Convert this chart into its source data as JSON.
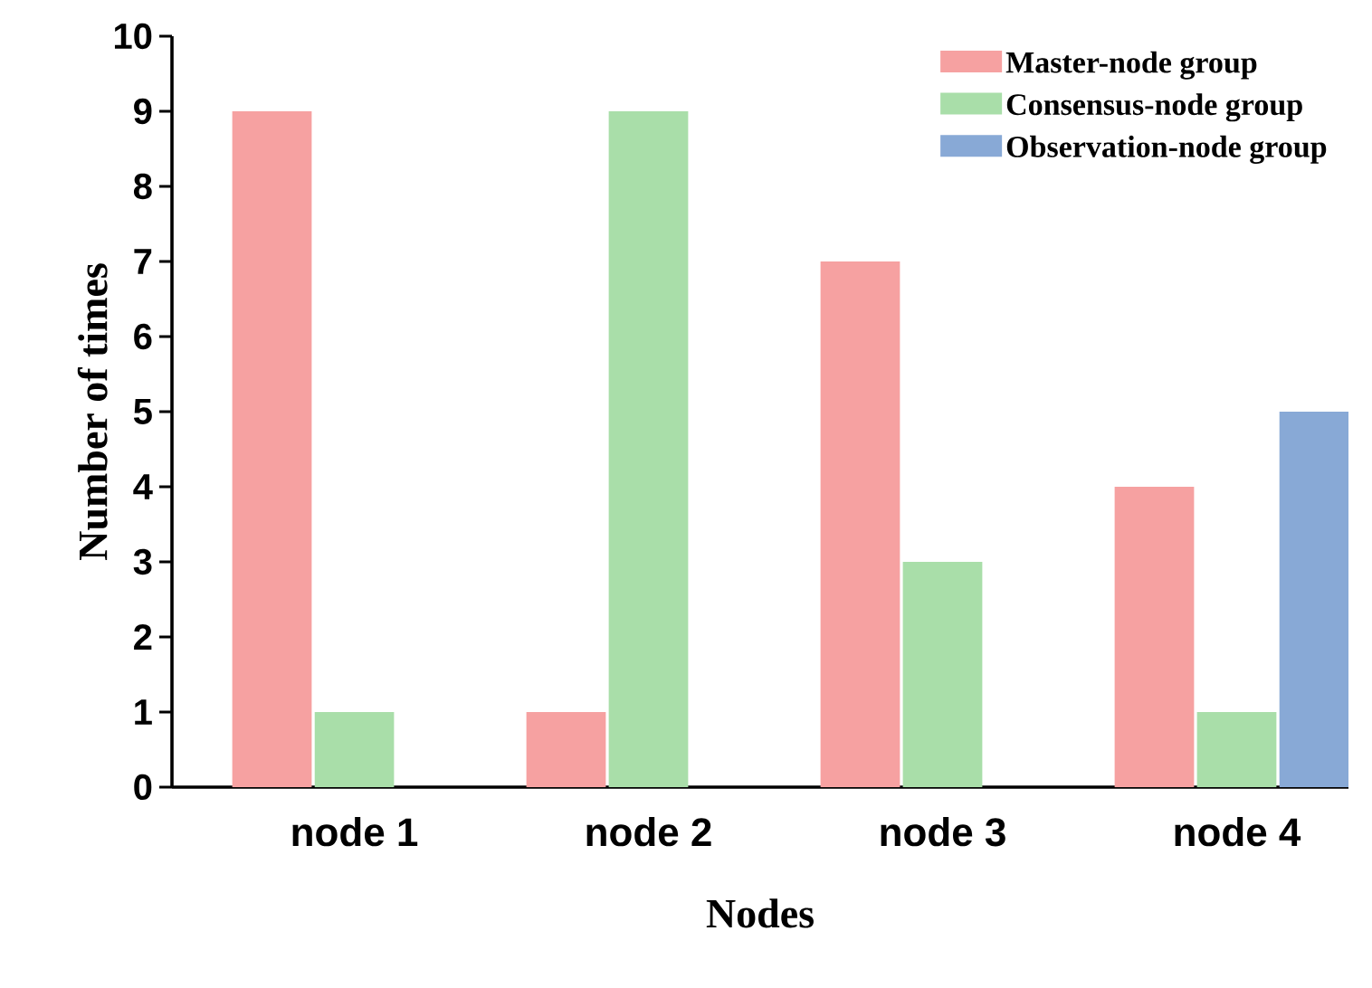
{
  "chart_data": {
    "type": "bar",
    "xlabel": "Nodes",
    "ylabel": "Number of times",
    "categories": [
      "node 1",
      "node 2",
      "node 3",
      "node 4"
    ],
    "series": [
      {
        "name": "Master-node group",
        "color": "#f6a1a1",
        "values": [
          9,
          1,
          7,
          4
        ]
      },
      {
        "name": "Consensus-node group",
        "color": "#a9dea9",
        "values": [
          1,
          9,
          3,
          1
        ]
      },
      {
        "name": "Observation-node group",
        "color": "#88a9d6",
        "values": [
          null,
          null,
          null,
          5
        ]
      }
    ],
    "ylim": [
      0,
      10
    ],
    "yticks": [
      0,
      1,
      2,
      3,
      4,
      5,
      6,
      7,
      8,
      9,
      10
    ],
    "grid": false,
    "legend": "top right"
  }
}
